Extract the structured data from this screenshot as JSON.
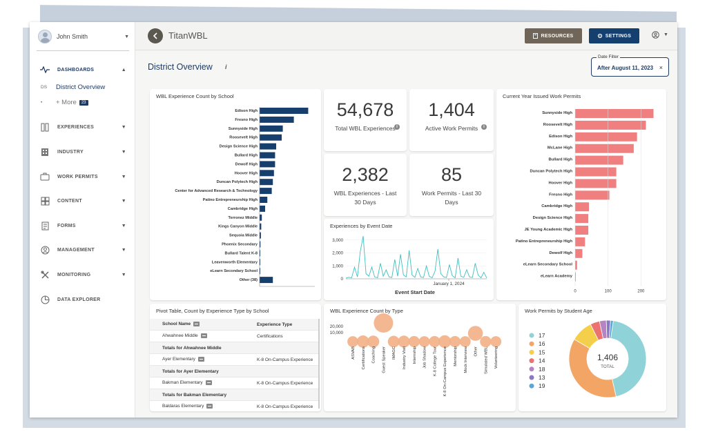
{
  "user": {
    "name": "John Smith"
  },
  "nav": {
    "dashboards": "DASHBOARDS",
    "sub_abbr": "DS",
    "sub_current": "District Overview",
    "sub_more": "+ More",
    "sub_more_count": "23",
    "experiences": "EXPERIENCES",
    "industry": "INDUSTRY",
    "work_permits": "WORK PERMITS",
    "content": "CONTENT",
    "forms": "FORMS",
    "management": "MANAGEMENT",
    "monitoring": "MONITORING",
    "data_explorer": "DATA EXPLORER"
  },
  "header": {
    "app_name": "TitanWBL",
    "resources": "RESOURCES",
    "settings": "SETTINGS"
  },
  "page": {
    "title": "District Overview",
    "info": "i",
    "date_filter_label": "Date Filter",
    "date_filter_value": "After August 11, 2023",
    "clear": "×"
  },
  "kpis": [
    {
      "value": "54,678",
      "label": "Total WBL Experiences"
    },
    {
      "value": "1,404",
      "label": "Active Work Permits"
    },
    {
      "value": "2,382",
      "label": "WBL Experiences - Last 30 Days"
    },
    {
      "value": "85",
      "label": "Work Permits - Last 30 Days"
    }
  ],
  "colors": {
    "navy": "#173f6e",
    "salmon": "#f08080",
    "teal": "#3fbfbf",
    "peach": "#f2b086"
  },
  "chart_data": [
    {
      "type": "bar",
      "orientation": "horizontal",
      "title": "WBL Experience Count by School",
      "categories": [
        "Edison High",
        "Fresno High",
        "Sunnyside High",
        "Roosevelt High",
        "Design Science High",
        "Bullard High",
        "Dewolf High",
        "Hoover High",
        "Duncan Polytech High",
        "Center for Advanced Research & Technology",
        "Patino Entrepreneurship High",
        "Cambridge High",
        "Terronez Middle",
        "Kings Canyon Middle",
        "Sequoia Middle",
        "Phoenix Secondary",
        "Bullard Talent K-8",
        "Leavenworth Elementary",
        "eLearn Secondary School",
        "Other (38)"
      ],
      "values": [
        4400,
        3100,
        2100,
        2000,
        1500,
        1400,
        1400,
        1300,
        1200,
        1100,
        700,
        500,
        200,
        150,
        120,
        80,
        60,
        40,
        20,
        1200
      ],
      "xlim": [
        0,
        5000
      ]
    },
    {
      "type": "bar",
      "orientation": "horizontal",
      "title": "Current Year Issued Work Permits",
      "categories": [
        "Sunnyside High",
        "Roosevelt High",
        "Edison High",
        "McLane High",
        "Bullard High",
        "Duncan Polytech High",
        "Hoover High",
        "Fresno High",
        "Cambridge High",
        "Design Science High",
        "JE Young Academic High",
        "Patino Entrepreneurship High",
        "Dewolf High",
        "eLearn Secondary School",
        "eLearn Academy"
      ],
      "values": [
        238,
        215,
        188,
        178,
        146,
        125,
        125,
        104,
        42,
        40,
        40,
        30,
        22,
        6,
        1
      ],
      "xlim": [
        0,
        260
      ],
      "xticks": [
        "0",
        "100",
        "200"
      ]
    },
    {
      "type": "line",
      "title": "Experiences by Event Date",
      "xlabel": "Event Start Date",
      "yticks": [
        "3,000",
        "2,000",
        "1,000",
        "0"
      ],
      "ylim": [
        0,
        3200
      ],
      "x_tick_label": "January 1, 2024",
      "values": [
        60,
        120,
        80,
        900,
        150,
        2100,
        3300,
        400,
        200,
        900,
        150,
        80,
        1200,
        200,
        700,
        150,
        100,
        1500,
        200,
        1900,
        300,
        150,
        2200,
        300,
        120,
        800,
        150,
        100,
        1000,
        200,
        80,
        600,
        2300,
        400,
        150,
        100,
        1100,
        250,
        80,
        1600,
        200,
        120,
        700,
        150,
        100,
        1200,
        300,
        80,
        500,
        60
      ]
    },
    {
      "type": "scatter",
      "title": "WBL Experience Count by Type",
      "yticks": [
        "20,000",
        "10,000"
      ],
      "categories": [
        "ASVAB",
        "Certifications",
        "Coaching",
        "Guest Speaker",
        "IMAGC",
        "Industry Visit",
        "Internship",
        "Job Shadow",
        "K-8 College Tour",
        "K-8 On-Campus Experience",
        "Mentorship",
        "Mock Interview",
        "Other",
        "Simulated WBL",
        "Volunteering"
      ],
      "values": [
        7000,
        9000,
        8500,
        22000,
        8000,
        8500,
        7500,
        7000,
        7500,
        9500,
        7500,
        7000,
        13000,
        7500,
        7000
      ]
    },
    {
      "type": "pie",
      "title": "Work Permits by Student Age",
      "center_value": "1,406",
      "center_label": "TOTAL",
      "categories": [
        "17",
        "16",
        "15",
        "14",
        "18",
        "13",
        "19"
      ],
      "values": [
        620,
        520,
        130,
        55,
        40,
        25,
        16
      ],
      "colors": [
        "#8fd3d8",
        "#f2a565",
        "#f4d04a",
        "#ec7272",
        "#b783c4",
        "#8a79c2",
        "#5aa6d6"
      ]
    }
  ],
  "pivot": {
    "title": "Pivot Table, Count by Experience Type by School",
    "col1": "School Name",
    "col2": "Experience Type",
    "rows": [
      {
        "school": "Ahwahnee Middle",
        "type": "Certifications",
        "kind": "row"
      },
      {
        "school": "Totals for Ahwahnee Middle",
        "type": "",
        "kind": "tot"
      },
      {
        "school": "Ayer Elementary",
        "type": "K-8 On-Campus Experience",
        "kind": "row"
      },
      {
        "school": "Totals for Ayer Elementary",
        "type": "",
        "kind": "tot"
      },
      {
        "school": "Bakman Elementary",
        "type": "K-8 On-Campus Experience",
        "kind": "row"
      },
      {
        "school": "Totals for Bakman Elementary",
        "type": "",
        "kind": "tot"
      },
      {
        "school": "Baldaras Elementary",
        "type": "K-8 On-Campus Experience",
        "kind": "row"
      }
    ]
  }
}
